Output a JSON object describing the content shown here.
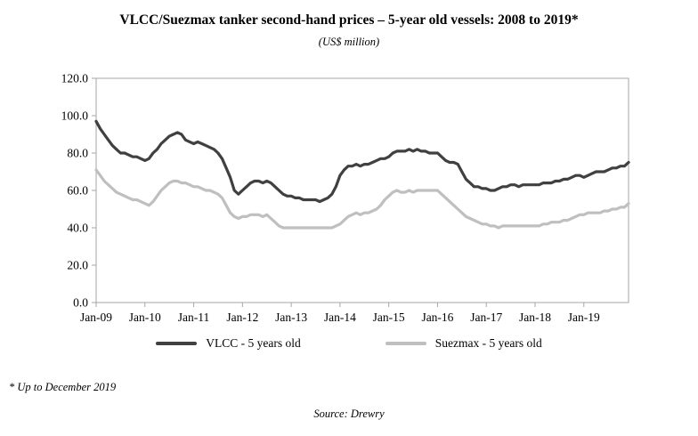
{
  "chart_data": {
    "type": "line",
    "title": "VLCC/Suezmax tanker second-hand prices – 5-year old vessels: 2008 to 2019*",
    "subtitle": "(US$ million)",
    "xlabel": "",
    "ylabel": "",
    "ylim": [
      0,
      120
    ],
    "y_tick_step": 20,
    "y_tick_labels": [
      "0.0",
      "20.0",
      "40.0",
      "60.0",
      "80.0",
      "100.0",
      "120.0"
    ],
    "x_tick_labels": [
      "Jan-09",
      "Jan-10",
      "Jan-11",
      "Jan-12",
      "Jan-13",
      "Jan-14",
      "Jan-15",
      "Jan-16",
      "Jan-17",
      "Jan-18",
      "Jan-19"
    ],
    "x_tick_every": 12,
    "x_unit": "month",
    "grid": false,
    "legend_position": "bottom",
    "series": [
      {
        "name": "VLCC - 5 years old",
        "color": "#404040",
        "values": [
          97,
          93,
          90,
          87,
          84,
          82,
          80,
          80,
          79,
          78,
          78,
          77,
          76,
          77,
          80,
          82,
          85,
          87,
          89,
          90,
          91,
          90,
          87,
          86,
          85,
          86,
          85,
          84,
          83,
          82,
          80,
          77,
          72,
          67,
          60,
          58,
          60,
          62,
          64,
          65,
          65,
          64,
          65,
          64,
          62,
          60,
          58,
          57,
          57,
          56,
          56,
          55,
          55,
          55,
          55,
          54,
          55,
          56,
          58,
          62,
          68,
          71,
          73,
          73,
          74,
          73,
          74,
          74,
          75,
          76,
          77,
          77,
          78,
          80,
          81,
          81,
          81,
          82,
          81,
          82,
          81,
          81,
          80,
          80,
          80,
          78,
          76,
          75,
          75,
          74,
          70,
          66,
          64,
          62,
          62,
          61,
          61,
          60,
          60,
          61,
          62,
          62,
          63,
          63,
          62,
          63,
          63,
          63,
          63,
          63,
          64,
          64,
          64,
          65,
          65,
          66,
          66,
          67,
          68,
          68,
          67,
          68,
          69,
          70,
          70,
          70,
          71,
          72,
          72,
          73,
          73,
          75
        ]
      },
      {
        "name": "Suezmax - 5 years old",
        "color": "#bfbfbf",
        "values": [
          71,
          68,
          65,
          63,
          61,
          59,
          58,
          57,
          56,
          55,
          55,
          54,
          53,
          52,
          54,
          57,
          60,
          62,
          64,
          65,
          65,
          64,
          64,
          63,
          62,
          62,
          61,
          60,
          60,
          59,
          58,
          56,
          52,
          48,
          46,
          45,
          46,
          46,
          47,
          47,
          47,
          46,
          47,
          45,
          43,
          41,
          40,
          40,
          40,
          40,
          40,
          40,
          40,
          40,
          40,
          40,
          40,
          40,
          40,
          41,
          42,
          44,
          46,
          47,
          48,
          47,
          48,
          48,
          49,
          50,
          52,
          55,
          57,
          59,
          60,
          59,
          59,
          60,
          59,
          60,
          60,
          60,
          60,
          60,
          60,
          58,
          56,
          54,
          52,
          50,
          48,
          46,
          45,
          44,
          43,
          42,
          42,
          41,
          41,
          40,
          41,
          41,
          41,
          41,
          41,
          41,
          41,
          41,
          41,
          41,
          42,
          42,
          43,
          43,
          43,
          44,
          44,
          45,
          46,
          47,
          47,
          48,
          48,
          48,
          48,
          49,
          49,
          50,
          50,
          51,
          51,
          53
        ]
      }
    ],
    "footnote": "* Up to December 2019",
    "source": "Source: Drewry"
  }
}
